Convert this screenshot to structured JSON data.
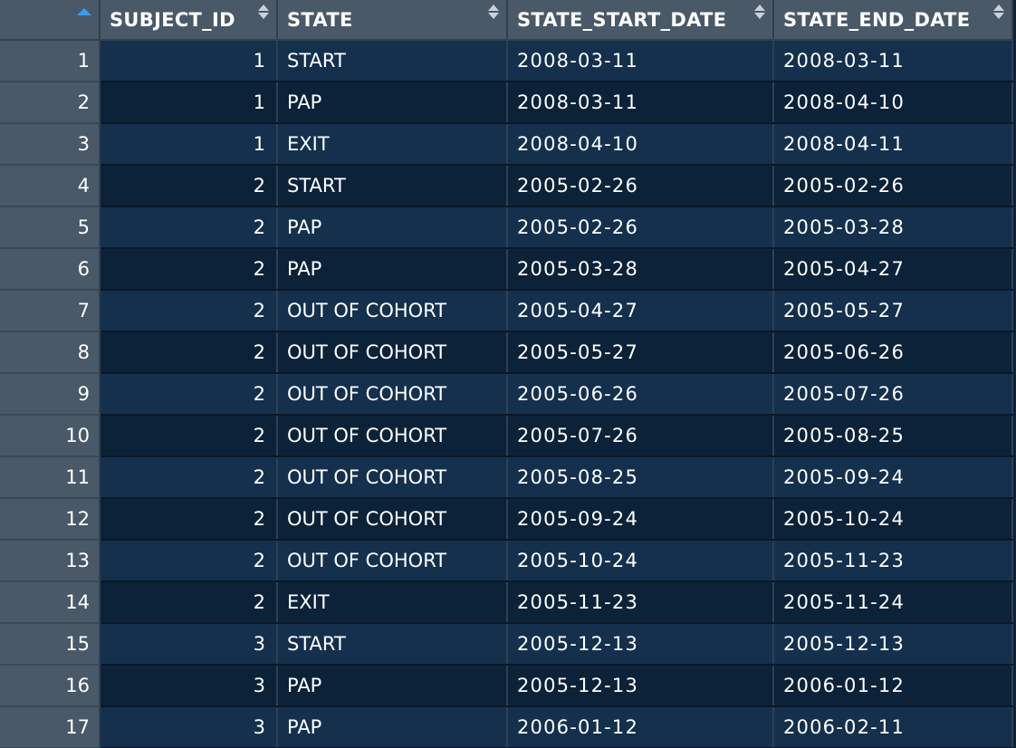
{
  "table": {
    "columns": [
      {
        "key": "rownum",
        "label": "",
        "sort": "asc"
      },
      {
        "key": "subject_id",
        "label": "SUBJECT_ID",
        "sort": "none"
      },
      {
        "key": "state",
        "label": "STATE",
        "sort": "none"
      },
      {
        "key": "state_start_date",
        "label": "STATE_START_DATE",
        "sort": "none"
      },
      {
        "key": "state_end_date",
        "label": "STATE_END_DATE",
        "sort": "none"
      }
    ],
    "rows": [
      {
        "rownum": "1",
        "subject_id": "1",
        "state": "START",
        "state_start_date": "2008-03-11",
        "state_end_date": "2008-03-11"
      },
      {
        "rownum": "2",
        "subject_id": "1",
        "state": "PAP",
        "state_start_date": "2008-03-11",
        "state_end_date": "2008-04-10"
      },
      {
        "rownum": "3",
        "subject_id": "1",
        "state": "EXIT",
        "state_start_date": "2008-04-10",
        "state_end_date": "2008-04-11"
      },
      {
        "rownum": "4",
        "subject_id": "2",
        "state": "START",
        "state_start_date": "2005-02-26",
        "state_end_date": "2005-02-26"
      },
      {
        "rownum": "5",
        "subject_id": "2",
        "state": "PAP",
        "state_start_date": "2005-02-26",
        "state_end_date": "2005-03-28"
      },
      {
        "rownum": "6",
        "subject_id": "2",
        "state": "PAP",
        "state_start_date": "2005-03-28",
        "state_end_date": "2005-04-27"
      },
      {
        "rownum": "7",
        "subject_id": "2",
        "state": "OUT OF COHORT",
        "state_start_date": "2005-04-27",
        "state_end_date": "2005-05-27"
      },
      {
        "rownum": "8",
        "subject_id": "2",
        "state": "OUT OF COHORT",
        "state_start_date": "2005-05-27",
        "state_end_date": "2005-06-26"
      },
      {
        "rownum": "9",
        "subject_id": "2",
        "state": "OUT OF COHORT",
        "state_start_date": "2005-06-26",
        "state_end_date": "2005-07-26"
      },
      {
        "rownum": "10",
        "subject_id": "2",
        "state": "OUT OF COHORT",
        "state_start_date": "2005-07-26",
        "state_end_date": "2005-08-25"
      },
      {
        "rownum": "11",
        "subject_id": "2",
        "state": "OUT OF COHORT",
        "state_start_date": "2005-08-25",
        "state_end_date": "2005-09-24"
      },
      {
        "rownum": "12",
        "subject_id": "2",
        "state": "OUT OF COHORT",
        "state_start_date": "2005-09-24",
        "state_end_date": "2005-10-24"
      },
      {
        "rownum": "13",
        "subject_id": "2",
        "state": "OUT OF COHORT",
        "state_start_date": "2005-10-24",
        "state_end_date": "2005-11-23"
      },
      {
        "rownum": "14",
        "subject_id": "2",
        "state": "EXIT",
        "state_start_date": "2005-11-23",
        "state_end_date": "2005-11-24"
      },
      {
        "rownum": "15",
        "subject_id": "3",
        "state": "START",
        "state_start_date": "2005-12-13",
        "state_end_date": "2005-12-13"
      },
      {
        "rownum": "16",
        "subject_id": "3",
        "state": "PAP",
        "state_start_date": "2005-12-13",
        "state_end_date": "2006-01-12"
      },
      {
        "rownum": "17",
        "subject_id": "3",
        "state": "PAP",
        "state_start_date": "2006-01-12",
        "state_end_date": "2006-02-11"
      }
    ]
  },
  "icons": {
    "sort_asc": "sort-ascending-icon",
    "sort_both": "sort-both-icon"
  },
  "colors": {
    "header_bg": "#4a5968",
    "row_odd": "#14304d",
    "row_even": "#0c2239",
    "sort_active": "#3d9be9"
  }
}
